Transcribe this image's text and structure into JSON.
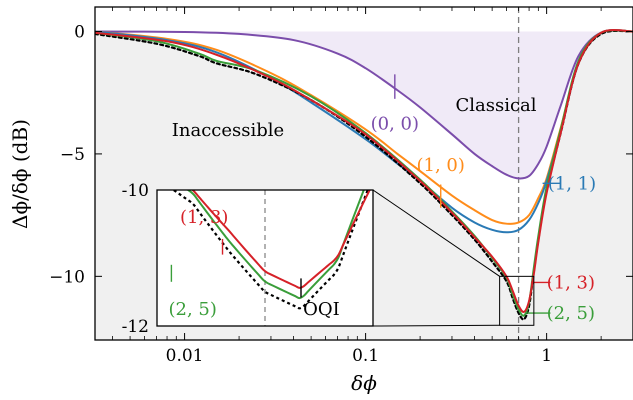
{
  "chart_data": {
    "type": "line",
    "xlabel": "δϕ",
    "ylabel": "Δϕ/δϕ (dB)",
    "x_scale": "log",
    "xlim": [
      0.0032,
      3.0
    ],
    "ylim": [
      -12.6,
      1.0
    ],
    "x_ticks": [
      {
        "value": 0.01,
        "label": "0.01"
      },
      {
        "value": 0.1,
        "label": "0.1"
      },
      {
        "value": 1,
        "label": "1"
      }
    ],
    "y_ticks": [
      {
        "value": 0,
        "label": "0"
      },
      {
        "value": -5,
        "label": "−5"
      },
      {
        "value": -10,
        "label": "−10"
      }
    ],
    "vline_x": 0.7,
    "regions": {
      "inaccessible": "Inaccessible",
      "classical": "Classical"
    },
    "colors": {
      "purple": "#7b4dab",
      "orange": "#ff8c1a",
      "blue": "#2a7ab5",
      "red": "#d62128",
      "green": "#3a9e3a",
      "black": "#000000",
      "region_fill": "#f0f0f0",
      "classical_fill": "#f0eaf7"
    },
    "series": [
      {
        "name": "(0, 0)",
        "color": "purple",
        "dash": false,
        "x": [
          0.0032,
          0.01,
          0.02,
          0.04,
          0.07,
          0.1,
          0.15,
          0.2,
          0.3,
          0.4,
          0.5,
          0.6,
          0.7,
          0.8,
          0.9,
          1.0,
          1.2,
          1.5,
          2.0,
          3.0
        ],
        "y": [
          0,
          -0.02,
          -0.1,
          -0.35,
          -0.9,
          -1.5,
          -2.4,
          -3.1,
          -4.2,
          -5.0,
          -5.5,
          -5.85,
          -6.0,
          -5.9,
          -5.4,
          -4.7,
          -3.0,
          -1.0,
          -0.05,
          0
        ]
      },
      {
        "name": "(1, 0)",
        "color": "orange",
        "dash": false,
        "x": [
          0.0032,
          0.008,
          0.015,
          0.03,
          0.05,
          0.1,
          0.15,
          0.2,
          0.3,
          0.4,
          0.5,
          0.6,
          0.7,
          0.8,
          0.9,
          1.0,
          1.2,
          1.5,
          2.0,
          3.0
        ],
        "y": [
          0,
          -0.3,
          -0.75,
          -1.7,
          -2.6,
          -4.0,
          -5.0,
          -5.7,
          -6.7,
          -7.3,
          -7.7,
          -7.85,
          -7.8,
          -7.5,
          -6.8,
          -6.0,
          -3.9,
          -1.3,
          -0.05,
          0
        ]
      },
      {
        "name": "(1, 1)",
        "color": "blue",
        "dash": false,
        "x": [
          0.0032,
          0.008,
          0.015,
          0.03,
          0.05,
          0.1,
          0.15,
          0.2,
          0.3,
          0.4,
          0.5,
          0.6,
          0.7,
          0.8,
          0.9,
          1.0,
          1.2,
          1.5,
          2.0,
          3.0
        ],
        "y": [
          0,
          -0.35,
          -0.85,
          -1.9,
          -2.9,
          -4.4,
          -5.4,
          -6.1,
          -7.2,
          -7.8,
          -8.1,
          -8.2,
          -8.1,
          -7.7,
          -7.0,
          -6.1,
          -4.0,
          -1.3,
          -0.05,
          0
        ]
      },
      {
        "name": "OQI",
        "color": "black",
        "dash": true,
        "x": [
          0.0032,
          0.007,
          0.012,
          0.015,
          0.025,
          0.05,
          0.1,
          0.2,
          0.3,
          0.4,
          0.5,
          0.6,
          0.65,
          0.7,
          0.75,
          0.8,
          0.85,
          0.9,
          1.0,
          1.2,
          1.5,
          2.0,
          3.0
        ],
        "y": [
          -0.1,
          -0.5,
          -1.0,
          -1.3,
          -1.75,
          -2.8,
          -4.3,
          -6.2,
          -7.5,
          -8.5,
          -9.4,
          -10.2,
          -10.9,
          -11.5,
          -11.75,
          -11.2,
          -9.8,
          -8.5,
          -6.5,
          -4.1,
          -1.3,
          -0.1,
          0
        ]
      },
      {
        "name": "(2, 5)",
        "color": "green",
        "dash": false,
        "x": [
          0.0032,
          0.007,
          0.012,
          0.015,
          0.025,
          0.05,
          0.1,
          0.2,
          0.3,
          0.4,
          0.5,
          0.6,
          0.65,
          0.7,
          0.75,
          0.8,
          0.85,
          0.9,
          1.0,
          1.2,
          1.5,
          2.0,
          3.0
        ],
        "y": [
          -0.05,
          -0.4,
          -0.9,
          -1.2,
          -1.6,
          -2.65,
          -4.15,
          -6.05,
          -7.35,
          -8.35,
          -9.25,
          -10.05,
          -10.75,
          -11.35,
          -11.6,
          -11.05,
          -9.65,
          -8.35,
          -6.35,
          -3.95,
          -1.2,
          -0.05,
          0
        ]
      },
      {
        "name": "(1, 3)",
        "color": "red",
        "dash": false,
        "x": [
          0.0032,
          0.008,
          0.015,
          0.03,
          0.05,
          0.1,
          0.2,
          0.3,
          0.4,
          0.5,
          0.6,
          0.65,
          0.7,
          0.75,
          0.8,
          0.85,
          0.9,
          1.0,
          1.2,
          1.5,
          2.0,
          3.0
        ],
        "y": [
          -0.05,
          -0.4,
          -0.95,
          -1.9,
          -2.8,
          -4.2,
          -6.1,
          -7.4,
          -8.4,
          -9.2,
          -10.0,
          -10.6,
          -11.2,
          -11.45,
          -11.0,
          -9.9,
          -8.6,
          -6.6,
          -4.1,
          -1.3,
          -0.05,
          0
        ]
      }
    ],
    "series_labels": [
      {
        "series": "(0, 0)",
        "text": "(0, 0)",
        "label_x": 0.145,
        "label_y": -3.75,
        "tick_x": 0.145,
        "tick_y1": -1.75,
        "tick_y2": -2.75
      },
      {
        "series": "(1, 0)",
        "text": "(1, 0)",
        "label_x": 0.26,
        "label_y": -5.45,
        "tick_x": 0.26,
        "tick_y1": -6.25,
        "tick_y2": -7.2
      },
      {
        "series": "(1, 1)",
        "text": "(1, 1)",
        "label_x": 1.38,
        "label_y": -6.2,
        "tick_x1": 0.95,
        "tick_x2": 1.2,
        "tick_y": -6.2
      },
      {
        "series": "(1, 3)",
        "text": "(1, 3)",
        "label_x": 1.36,
        "label_y": -10.25,
        "tick_x1": 0.82,
        "tick_x2": 1.05,
        "tick_y": -10.25
      },
      {
        "series": "(2, 5)",
        "text": "(2, 5)",
        "label_x": 1.36,
        "label_y": -11.5,
        "tick_x1": 0.78,
        "tick_x2": 1.05,
        "tick_y": -11.5
      }
    ],
    "inset": {
      "xlim": [
        0.55,
        0.85
      ],
      "ylim": [
        -12,
        -10
      ],
      "y_ticks": [
        {
          "value": -10,
          "label": "-10"
        },
        {
          "value": -12,
          "label": "-12"
        }
      ],
      "vline_x": 0.7,
      "oqi_label": "OQI",
      "series_labels": [
        {
          "series": "(1, 3)",
          "text": "(1, 3)",
          "label_x": 0.582,
          "label_y": -10.4,
          "tick_x": 0.641,
          "tick_y1": -10.72,
          "tick_y2": -10.95
        },
        {
          "series": "(2, 5)",
          "text": "(2, 5)",
          "label_x": 0.566,
          "label_y": -11.75,
          "tick_x": 0.57,
          "tick_y1": -11.1,
          "tick_y2": -11.35
        },
        {
          "series": "OQI",
          "text": "OQI",
          "label_x": 0.753,
          "label_y": -11.75,
          "tick_x": 0.75,
          "tick_y1": -11.3,
          "tick_y2": -11.58
        }
      ]
    }
  }
}
